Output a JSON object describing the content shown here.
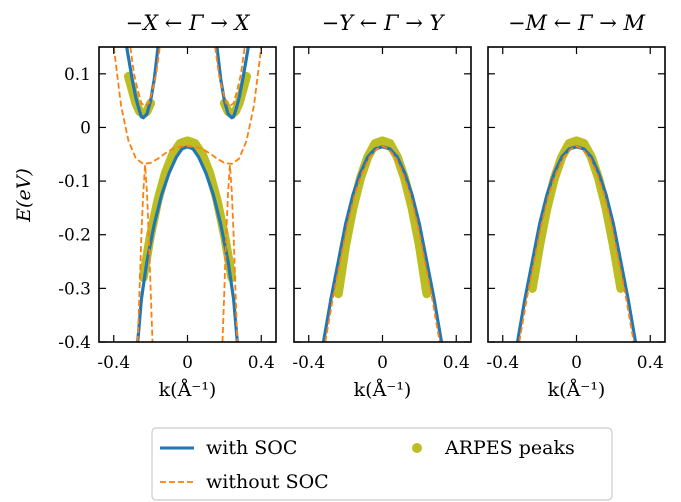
{
  "chart_data": {
    "type": "line",
    "ylabel": "E(eV)",
    "ylim": [
      -0.4,
      0.15
    ],
    "xlim": [
      -0.48,
      0.48
    ],
    "yticks": [
      0.1,
      0,
      -0.1,
      -0.2,
      -0.3,
      -0.4
    ],
    "ytick_labels": [
      "0.1",
      "0",
      "-0.1",
      "-0.2",
      "-0.3",
      "-0.4"
    ],
    "xticks": [
      -0.4,
      0,
      0.4
    ],
    "xtick_labels": [
      "-0.4",
      "0",
      "0.4"
    ],
    "colors": {
      "soc": "#2077b4",
      "nosoc": "#ff7f0e",
      "arpes": "#bcbd22"
    },
    "legend": {
      "placement": "bottom-center",
      "entries": [
        {
          "key": "soc",
          "label": "with SOC",
          "style": "solid-line"
        },
        {
          "key": "arpes",
          "label": "ARPES peaks",
          "style": "marker"
        },
        {
          "key": "nosoc",
          "label": "without SOC",
          "style": "dashed-line"
        }
      ]
    },
    "panels": [
      {
        "title": "−X ← Γ → X",
        "xlabel": "k(Å⁻¹)",
        "series": [
          {
            "name": "with SOC",
            "x": [
              -0.42,
              -0.38,
              -0.34,
              -0.3,
              -0.26,
              -0.24,
              -0.22,
              -0.2,
              -0.16,
              -0.12,
              -0.08,
              -0.04,
              0,
              0.04,
              0.08,
              0.12,
              0.16,
              0.2,
              0.22,
              0.24,
              0.26,
              0.3,
              0.34,
              0.38,
              0.42
            ],
            "branches": [
              {
                "x": [
                  -0.33,
                  -0.32,
                  -0.3,
                  -0.28,
                  -0.26,
                  -0.25,
                  -0.24,
                  -0.22,
                  -0.2,
                  -0.18,
                  -0.16
                ],
                "y": [
                  0.15,
                  0.13,
                  0.09,
                  0.055,
                  0.03,
                  0.02,
                  0.018,
                  0.025,
                  0.05,
                  0.09,
                  0.15
                ]
              },
              {
                "x": [
                  0.16,
                  0.18,
                  0.2,
                  0.22,
                  0.24,
                  0.25,
                  0.26,
                  0.28,
                  0.3,
                  0.32,
                  0.33
                ],
                "y": [
                  0.15,
                  0.09,
                  0.05,
                  0.025,
                  0.018,
                  0.02,
                  0.03,
                  0.055,
                  0.09,
                  0.13,
                  0.15
                ]
              },
              {
                "x": [
                  -0.27,
                  -0.25,
                  -0.22,
                  -0.18,
                  -0.14,
                  -0.1,
                  -0.06,
                  -0.03,
                  0,
                  0.03,
                  0.06,
                  0.1,
                  0.14,
                  0.18,
                  0.22,
                  0.25,
                  0.27
                ],
                "y": [
                  -0.4,
                  -0.32,
                  -0.25,
                  -0.18,
                  -0.125,
                  -0.085,
                  -0.055,
                  -0.04,
                  -0.036,
                  -0.04,
                  -0.055,
                  -0.085,
                  -0.125,
                  -0.18,
                  -0.25,
                  -0.32,
                  -0.4
                ]
              }
            ]
          },
          {
            "name": "without SOC",
            "branches": [
              {
                "x": [
                  -0.4,
                  -0.36,
                  -0.32,
                  -0.28,
                  -0.24,
                  -0.2,
                  -0.16,
                  -0.12,
                  -0.08,
                  -0.04,
                  0,
                  0.04,
                  0.08,
                  0.12,
                  0.16,
                  0.2,
                  0.24,
                  0.28,
                  0.32,
                  0.36,
                  0.4
                ],
                "y": [
                  0.15,
                  0.04,
                  -0.025,
                  -0.058,
                  -0.068,
                  -0.066,
                  -0.058,
                  -0.048,
                  -0.04,
                  -0.036,
                  -0.035,
                  -0.036,
                  -0.04,
                  -0.048,
                  -0.058,
                  -0.066,
                  -0.068,
                  -0.058,
                  -0.025,
                  0.04,
                  0.15
                ]
              },
              {
                "x": [
                  -0.31,
                  -0.29,
                  -0.27,
                  -0.25,
                  -0.23,
                  -0.21,
                  -0.19,
                  -0.17,
                  -0.15
                ],
                "y": [
                  0.15,
                  0.1,
                  0.07,
                  0.045,
                  0.04,
                  0.045,
                  0.07,
                  0.1,
                  0.15
                ]
              },
              {
                "x": [
                  0.15,
                  0.17,
                  0.19,
                  0.21,
                  0.23,
                  0.25,
                  0.27,
                  0.29,
                  0.31
                ],
                "y": [
                  0.15,
                  0.1,
                  0.07,
                  0.045,
                  0.04,
                  0.045,
                  0.07,
                  0.1,
                  0.15
                ]
              },
              {
                "x": [
                  -0.27,
                  -0.26,
                  -0.25,
                  -0.24,
                  -0.23,
                  -0.22,
                  -0.21,
                  -0.2,
                  -0.19
                ],
                "y": [
                  -0.4,
                  -0.3,
                  -0.2,
                  -0.12,
                  -0.07,
                  -0.12,
                  -0.2,
                  -0.3,
                  -0.4
                ]
              },
              {
                "x": [
                  0.19,
                  0.2,
                  0.21,
                  0.22,
                  0.23,
                  0.24,
                  0.25,
                  0.26,
                  0.27
                ],
                "y": [
                  -0.4,
                  -0.3,
                  -0.2,
                  -0.12,
                  -0.07,
                  -0.12,
                  -0.2,
                  -0.3,
                  -0.4
                ]
              }
            ]
          },
          {
            "name": "ARPES peaks",
            "branches": [
              {
                "x": [
                  -0.32,
                  -0.3,
                  -0.28,
                  -0.26,
                  -0.24,
                  -0.22,
                  -0.2
                ],
                "y": [
                  0.095,
                  0.07,
                  0.045,
                  0.03,
                  0.025,
                  0.03,
                  0.045
                ]
              },
              {
                "x": [
                  0.2,
                  0.22,
                  0.24,
                  0.26,
                  0.28,
                  0.3,
                  0.32
                ],
                "y": [
                  0.045,
                  0.03,
                  0.025,
                  0.03,
                  0.045,
                  0.07,
                  0.095
                ]
              },
              {
                "x": [
                  -0.24,
                  -0.2,
                  -0.16,
                  -0.12,
                  -0.08,
                  -0.04,
                  0,
                  0.04,
                  0.08,
                  0.12,
                  0.16,
                  0.2,
                  0.24
                ],
                "y": [
                  -0.28,
                  -0.2,
                  -0.135,
                  -0.085,
                  -0.05,
                  -0.03,
                  -0.025,
                  -0.03,
                  -0.05,
                  -0.085,
                  -0.135,
                  -0.2,
                  -0.28
                ]
              }
            ]
          }
        ]
      },
      {
        "title": "−Y ← Γ → Y",
        "xlabel": "k(Å⁻¹)",
        "series": [
          {
            "name": "with SOC",
            "branches": [
              {
                "x": [
                  -0.32,
                  -0.28,
                  -0.24,
                  -0.2,
                  -0.16,
                  -0.12,
                  -0.08,
                  -0.04,
                  0,
                  0.04,
                  0.08,
                  0.12,
                  0.16,
                  0.2,
                  0.24,
                  0.28,
                  0.32
                ],
                "y": [
                  -0.4,
                  -0.32,
                  -0.25,
                  -0.18,
                  -0.125,
                  -0.085,
                  -0.055,
                  -0.04,
                  -0.036,
                  -0.04,
                  -0.055,
                  -0.085,
                  -0.125,
                  -0.18,
                  -0.25,
                  -0.32,
                  -0.4
                ]
              }
            ]
          },
          {
            "name": "without SOC",
            "branches": [
              {
                "x": [
                  -0.31,
                  -0.27,
                  -0.23,
                  -0.19,
                  -0.15,
                  -0.11,
                  -0.07,
                  -0.03,
                  0,
                  0.03,
                  0.07,
                  0.11,
                  0.15,
                  0.19,
                  0.23,
                  0.27,
                  0.31
                ],
                "y": [
                  -0.4,
                  -0.32,
                  -0.25,
                  -0.18,
                  -0.125,
                  -0.085,
                  -0.055,
                  -0.04,
                  -0.035,
                  -0.04,
                  -0.055,
                  -0.085,
                  -0.125,
                  -0.18,
                  -0.25,
                  -0.32,
                  -0.4
                ]
              }
            ]
          },
          {
            "name": "ARPES peaks",
            "branches": [
              {
                "x": [
                  -0.24,
                  -0.2,
                  -0.16,
                  -0.12,
                  -0.08,
                  -0.04,
                  0,
                  0.04,
                  0.08,
                  0.12,
                  0.16,
                  0.2,
                  0.24
                ],
                "y": [
                  -0.31,
                  -0.22,
                  -0.15,
                  -0.095,
                  -0.055,
                  -0.03,
                  -0.025,
                  -0.03,
                  -0.055,
                  -0.095,
                  -0.15,
                  -0.22,
                  -0.31
                ]
              }
            ]
          }
        ]
      },
      {
        "title": "−M ← Γ → M",
        "xlabel": "k(Å⁻¹)",
        "series": [
          {
            "name": "with SOC",
            "branches": [
              {
                "x": [
                  -0.32,
                  -0.28,
                  -0.24,
                  -0.2,
                  -0.16,
                  -0.12,
                  -0.08,
                  -0.04,
                  0,
                  0.04,
                  0.08,
                  0.12,
                  0.16,
                  0.2,
                  0.24,
                  0.28,
                  0.32
                ],
                "y": [
                  -0.4,
                  -0.32,
                  -0.25,
                  -0.18,
                  -0.125,
                  -0.085,
                  -0.055,
                  -0.04,
                  -0.036,
                  -0.04,
                  -0.055,
                  -0.085,
                  -0.125,
                  -0.18,
                  -0.25,
                  -0.32,
                  -0.4
                ]
              }
            ]
          },
          {
            "name": "without SOC",
            "branches": [
              {
                "x": [
                  -0.31,
                  -0.27,
                  -0.23,
                  -0.19,
                  -0.15,
                  -0.11,
                  -0.07,
                  -0.03,
                  0,
                  0.03,
                  0.07,
                  0.11,
                  0.15,
                  0.19,
                  0.23,
                  0.27,
                  0.31
                ],
                "y": [
                  -0.4,
                  -0.32,
                  -0.25,
                  -0.18,
                  -0.125,
                  -0.085,
                  -0.055,
                  -0.04,
                  -0.035,
                  -0.04,
                  -0.055,
                  -0.085,
                  -0.125,
                  -0.18,
                  -0.25,
                  -0.32,
                  -0.4
                ]
              }
            ]
          },
          {
            "name": "ARPES peaks",
            "branches": [
              {
                "x": [
                  -0.24,
                  -0.2,
                  -0.16,
                  -0.12,
                  -0.08,
                  -0.04,
                  0,
                  0.04,
                  0.08,
                  0.12,
                  0.16,
                  0.2,
                  0.24
                ],
                "y": [
                  -0.3,
                  -0.22,
                  -0.15,
                  -0.095,
                  -0.055,
                  -0.03,
                  -0.025,
                  -0.03,
                  -0.055,
                  -0.095,
                  -0.15,
                  -0.22,
                  -0.3
                ]
              }
            ]
          }
        ]
      }
    ]
  }
}
